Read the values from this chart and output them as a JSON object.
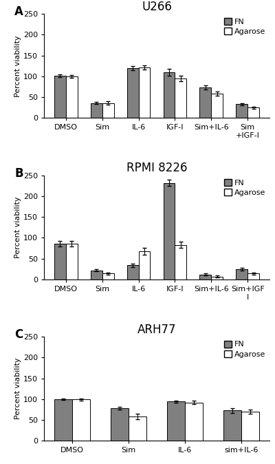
{
  "panels": [
    {
      "label": "A",
      "title": "U266",
      "categories": [
        "DMSO",
        "Sim",
        "IL-6",
        "IGF-I",
        "Sim+IL-6",
        "Sim\n+IGF-I"
      ],
      "fn_values": [
        102,
        36,
        120,
        110,
        73,
        33
      ],
      "agarose_values": [
        100,
        36,
        122,
        95,
        58,
        25
      ],
      "fn_errors": [
        3,
        3,
        5,
        8,
        5,
        3
      ],
      "agarose_errors": [
        3,
        4,
        5,
        7,
        5,
        3
      ],
      "ylim": [
        0,
        250
      ],
      "yticks": [
        0,
        50,
        100,
        150,
        200,
        250
      ]
    },
    {
      "label": "B",
      "title": "RPMI 8226",
      "categories": [
        "DMSO",
        "Sim",
        "IL-6",
        "IGF-I",
        "Sim+IL-6",
        "Sim+IGF\nI"
      ],
      "fn_values": [
        86,
        22,
        34,
        232,
        12,
        25
      ],
      "agarose_values": [
        86,
        14,
        68,
        83,
        7,
        14
      ],
      "fn_errors": [
        7,
        3,
        4,
        8,
        2,
        3
      ],
      "agarose_errors": [
        7,
        2,
        8,
        7,
        2,
        2
      ],
      "ylim": [
        0,
        250
      ],
      "yticks": [
        0,
        50,
        100,
        150,
        200,
        250
      ]
    },
    {
      "label": "C",
      "title": "ARH77",
      "categories": [
        "DMSO",
        "Sim",
        "IL-6",
        "sim+IL-6"
      ],
      "fn_values": [
        100,
        78,
        94,
        73
      ],
      "agarose_values": [
        99,
        58,
        92,
        70
      ],
      "fn_errors": [
        2,
        3,
        3,
        6
      ],
      "agarose_errors": [
        2,
        7,
        4,
        5
      ],
      "ylim": [
        0,
        250
      ],
      "yticks": [
        0,
        50,
        100,
        150,
        200,
        250
      ]
    }
  ],
  "fn_color": "#808080",
  "agarose_color": "#ffffff",
  "bar_edgecolor": "#000000",
  "bar_width": 0.32,
  "ylabel": "Percent viability",
  "legend_fn": "FN",
  "legend_agarose": "Agarose",
  "title_fontsize": 12,
  "label_fontsize": 8,
  "tick_fontsize": 8,
  "legend_fontsize": 8,
  "panel_label_fontsize": 12
}
